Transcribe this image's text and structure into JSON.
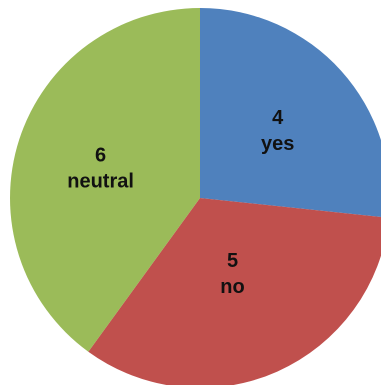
{
  "chart_data": {
    "type": "pie",
    "slices": [
      {
        "label": "yes",
        "value": 4,
        "color": "#4f81bd"
      },
      {
        "label": "no",
        "value": 5,
        "color": "#c0504d"
      },
      {
        "label": "neutral",
        "value": 6,
        "color": "#9bbb59"
      }
    ],
    "start_angle_deg": 0,
    "direction": "clockwise",
    "legend": "none",
    "show_values": true,
    "show_category_labels": true
  }
}
